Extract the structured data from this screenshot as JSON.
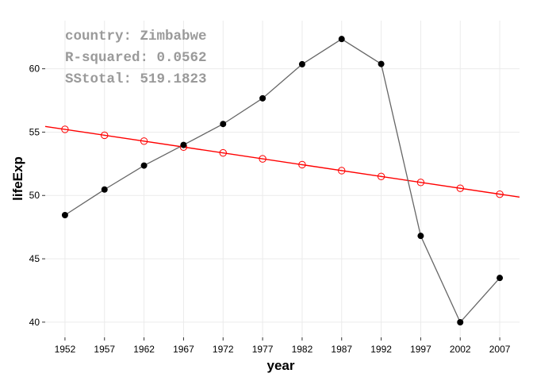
{
  "chart_data": {
    "type": "scatter",
    "xlabel": "year",
    "ylabel": "lifeExp",
    "xlim": [
      1949.5,
      2009.5
    ],
    "ylim": [
      38.8,
      63.8
    ],
    "x_ticks": [
      1952,
      1957,
      1962,
      1967,
      1972,
      1977,
      1982,
      1987,
      1992,
      1997,
      2002,
      2007
    ],
    "y_ticks": [
      40,
      45,
      50,
      55,
      60
    ],
    "grid": true,
    "annotations": [
      "country: Zimbabwe",
      "R-squared: 0.0562",
      "SStotal: 519.1823"
    ],
    "series": [
      {
        "kind": "observed",
        "color": "#000000",
        "line_color": "#666666",
        "x": [
          1952,
          1957,
          1962,
          1967,
          1972,
          1977,
          1982,
          1987,
          1992,
          1997,
          2002,
          2007
        ],
        "y": [
          48.45,
          50.47,
          52.36,
          53.99,
          55.64,
          57.67,
          60.36,
          62.35,
          60.38,
          46.81,
          39.99,
          43.49
        ]
      },
      {
        "kind": "fitted",
        "color": "#ff0000",
        "x": [
          1952,
          1957,
          1962,
          1967,
          1972,
          1977,
          1982,
          1987,
          1992,
          1997,
          2002,
          2007
        ],
        "y": [
          55.22,
          54.75,
          54.29,
          53.82,
          53.36,
          52.89,
          52.43,
          51.96,
          51.5,
          51.03,
          50.57,
          50.1
        ]
      }
    ],
    "regression_line": {
      "color": "#ff0000",
      "x": [
        1949.5,
        2009.5
      ],
      "y": [
        55.45,
        49.87
      ]
    }
  }
}
